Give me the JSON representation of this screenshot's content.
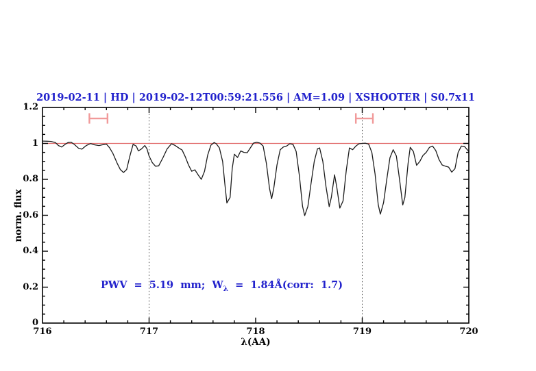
{
  "title": "2019-02-11 | HD | 2019-02-12T00:59:21.556 | AM=1.09 | XSHOOTER | S0.7x11",
  "colors": {
    "title_blue": "#2121cc",
    "annotation_blue": "#2121cc",
    "spectrum_line": "#1b1b1b",
    "continuum_line": "#e06666",
    "range_marker": "#f19a9a",
    "dotted_guide": "#3a3a3a",
    "axis": "#000000"
  },
  "annotation": {
    "part1": "PWV  =  5.19  mm;  W",
    "sub": "λ",
    "part2": "  =  1.84Å(corr:  1.7)"
  },
  "chart_data": {
    "type": "line",
    "title": "2019-02-11 | HD | 2019-02-12T00:59:21.556 | AM=1.09 | XSHOOTER | S0.7x11",
    "xlabel": "λ(AA)",
    "ylabel": "norm. flux",
    "xlim": [
      716,
      720
    ],
    "ylim": [
      0,
      1.2
    ],
    "x_tick_labels": [
      "716",
      "717",
      "718",
      "719",
      "720"
    ],
    "x_major_ticks": [
      716,
      717,
      718,
      719,
      720
    ],
    "x_minor_step": 0.2,
    "y_tick_labels": [
      "0",
      "0.2",
      "0.4",
      "0.6",
      "0.8",
      "1",
      "1.2"
    ],
    "y_major_ticks": [
      0,
      0.2,
      0.4,
      0.6,
      0.8,
      1.0,
      1.2
    ],
    "y_minor_step": 0.05,
    "grid": false,
    "legend": "none",
    "reference_line_y": 1.0,
    "vertical_dotted_lines_x": [
      717,
      719
    ],
    "range_markers": [
      {
        "x1": 716.44,
        "x2": 716.61,
        "y": 1.139,
        "cap_half_height": 0.029
      },
      {
        "x1": 718.94,
        "x2": 719.1,
        "y": 1.139,
        "cap_half_height": 0.029
      }
    ],
    "series": [
      {
        "name": "normalized-flux-spectrum",
        "points": [
          [
            716.0,
            1.013
          ],
          [
            716.04,
            1.012
          ],
          [
            716.08,
            1.011
          ],
          [
            716.12,
            1.005
          ],
          [
            716.15,
            0.988
          ],
          [
            716.18,
            0.98
          ],
          [
            716.21,
            0.994
          ],
          [
            716.24,
            1.005
          ],
          [
            716.27,
            1.006
          ],
          [
            716.3,
            0.994
          ],
          [
            716.34,
            0.972
          ],
          [
            716.37,
            0.968
          ],
          [
            716.41,
            0.988
          ],
          [
            716.45,
            0.999
          ],
          [
            716.49,
            0.992
          ],
          [
            716.53,
            0.988
          ],
          [
            716.57,
            0.993
          ],
          [
            716.6,
            0.996
          ],
          [
            716.63,
            0.975
          ],
          [
            716.66,
            0.945
          ],
          [
            716.7,
            0.89
          ],
          [
            716.73,
            0.855
          ],
          [
            716.76,
            0.838
          ],
          [
            716.79,
            0.855
          ],
          [
            716.82,
            0.93
          ],
          [
            716.85,
            0.995
          ],
          [
            716.88,
            0.985
          ],
          [
            716.9,
            0.958
          ],
          [
            716.93,
            0.97
          ],
          [
            716.96,
            0.988
          ],
          [
            716.98,
            0.97
          ],
          [
            717.0,
            0.93
          ],
          [
            717.03,
            0.893
          ],
          [
            717.06,
            0.873
          ],
          [
            717.09,
            0.875
          ],
          [
            717.13,
            0.92
          ],
          [
            717.17,
            0.97
          ],
          [
            717.21,
            0.998
          ],
          [
            717.24,
            0.99
          ],
          [
            717.28,
            0.974
          ],
          [
            717.31,
            0.963
          ],
          [
            717.34,
            0.925
          ],
          [
            717.37,
            0.88
          ],
          [
            717.4,
            0.845
          ],
          [
            717.43,
            0.853
          ],
          [
            717.46,
            0.825
          ],
          [
            717.49,
            0.8
          ],
          [
            717.52,
            0.845
          ],
          [
            717.55,
            0.935
          ],
          [
            717.58,
            0.99
          ],
          [
            717.61,
            1.005
          ],
          [
            717.63,
            0.998
          ],
          [
            717.66,
            0.975
          ],
          [
            717.69,
            0.9
          ],
          [
            717.71,
            0.78
          ],
          [
            717.73,
            0.668
          ],
          [
            717.76,
            0.7
          ],
          [
            717.78,
            0.86
          ],
          [
            717.8,
            0.94
          ],
          [
            717.83,
            0.922
          ],
          [
            717.86,
            0.958
          ],
          [
            717.89,
            0.95
          ],
          [
            717.92,
            0.948
          ],
          [
            717.95,
            0.975
          ],
          [
            717.98,
            1.002
          ],
          [
            718.01,
            1.006
          ],
          [
            718.04,
            1.002
          ],
          [
            718.07,
            0.985
          ],
          [
            718.1,
            0.89
          ],
          [
            718.13,
            0.75
          ],
          [
            718.15,
            0.692
          ],
          [
            718.17,
            0.75
          ],
          [
            718.2,
            0.88
          ],
          [
            718.23,
            0.965
          ],
          [
            718.26,
            0.98
          ],
          [
            718.29,
            0.985
          ],
          [
            718.32,
            0.998
          ],
          [
            718.35,
            0.995
          ],
          [
            718.38,
            0.955
          ],
          [
            718.41,
            0.82
          ],
          [
            718.44,
            0.65
          ],
          [
            718.46,
            0.598
          ],
          [
            718.49,
            0.65
          ],
          [
            718.52,
            0.78
          ],
          [
            718.55,
            0.9
          ],
          [
            718.58,
            0.97
          ],
          [
            718.6,
            0.975
          ],
          [
            718.63,
            0.9
          ],
          [
            718.66,
            0.76
          ],
          [
            718.69,
            0.648
          ],
          [
            718.71,
            0.7
          ],
          [
            718.74,
            0.825
          ],
          [
            718.76,
            0.76
          ],
          [
            718.79,
            0.64
          ],
          [
            718.82,
            0.68
          ],
          [
            718.85,
            0.85
          ],
          [
            718.88,
            0.975
          ],
          [
            718.91,
            0.965
          ],
          [
            718.94,
            0.985
          ],
          [
            718.97,
            0.998
          ],
          [
            719.0,
            1.0
          ],
          [
            719.03,
            1.001
          ],
          [
            719.06,
            0.996
          ],
          [
            719.09,
            0.95
          ],
          [
            719.12,
            0.83
          ],
          [
            719.15,
            0.66
          ],
          [
            719.17,
            0.606
          ],
          [
            719.2,
            0.67
          ],
          [
            719.23,
            0.8
          ],
          [
            719.26,
            0.92
          ],
          [
            719.29,
            0.965
          ],
          [
            719.32,
            0.93
          ],
          [
            719.35,
            0.8
          ],
          [
            719.38,
            0.657
          ],
          [
            719.4,
            0.7
          ],
          [
            719.43,
            0.89
          ],
          [
            719.45,
            0.978
          ],
          [
            719.48,
            0.955
          ],
          [
            719.51,
            0.878
          ],
          [
            719.54,
            0.9
          ],
          [
            719.57,
            0.933
          ],
          [
            719.6,
            0.95
          ],
          [
            719.63,
            0.978
          ],
          [
            719.66,
            0.985
          ],
          [
            719.69,
            0.96
          ],
          [
            719.72,
            0.91
          ],
          [
            719.75,
            0.88
          ],
          [
            719.78,
            0.873
          ],
          [
            719.81,
            0.868
          ],
          [
            719.84,
            0.84
          ],
          [
            719.87,
            0.86
          ],
          [
            719.9,
            0.95
          ],
          [
            719.93,
            0.985
          ],
          [
            719.96,
            0.982
          ],
          [
            720.0,
            0.955
          ]
        ]
      }
    ],
    "annotation": "PWV = 5.19 mm; W_λ = 1.84Å(corr: 1.7)"
  }
}
